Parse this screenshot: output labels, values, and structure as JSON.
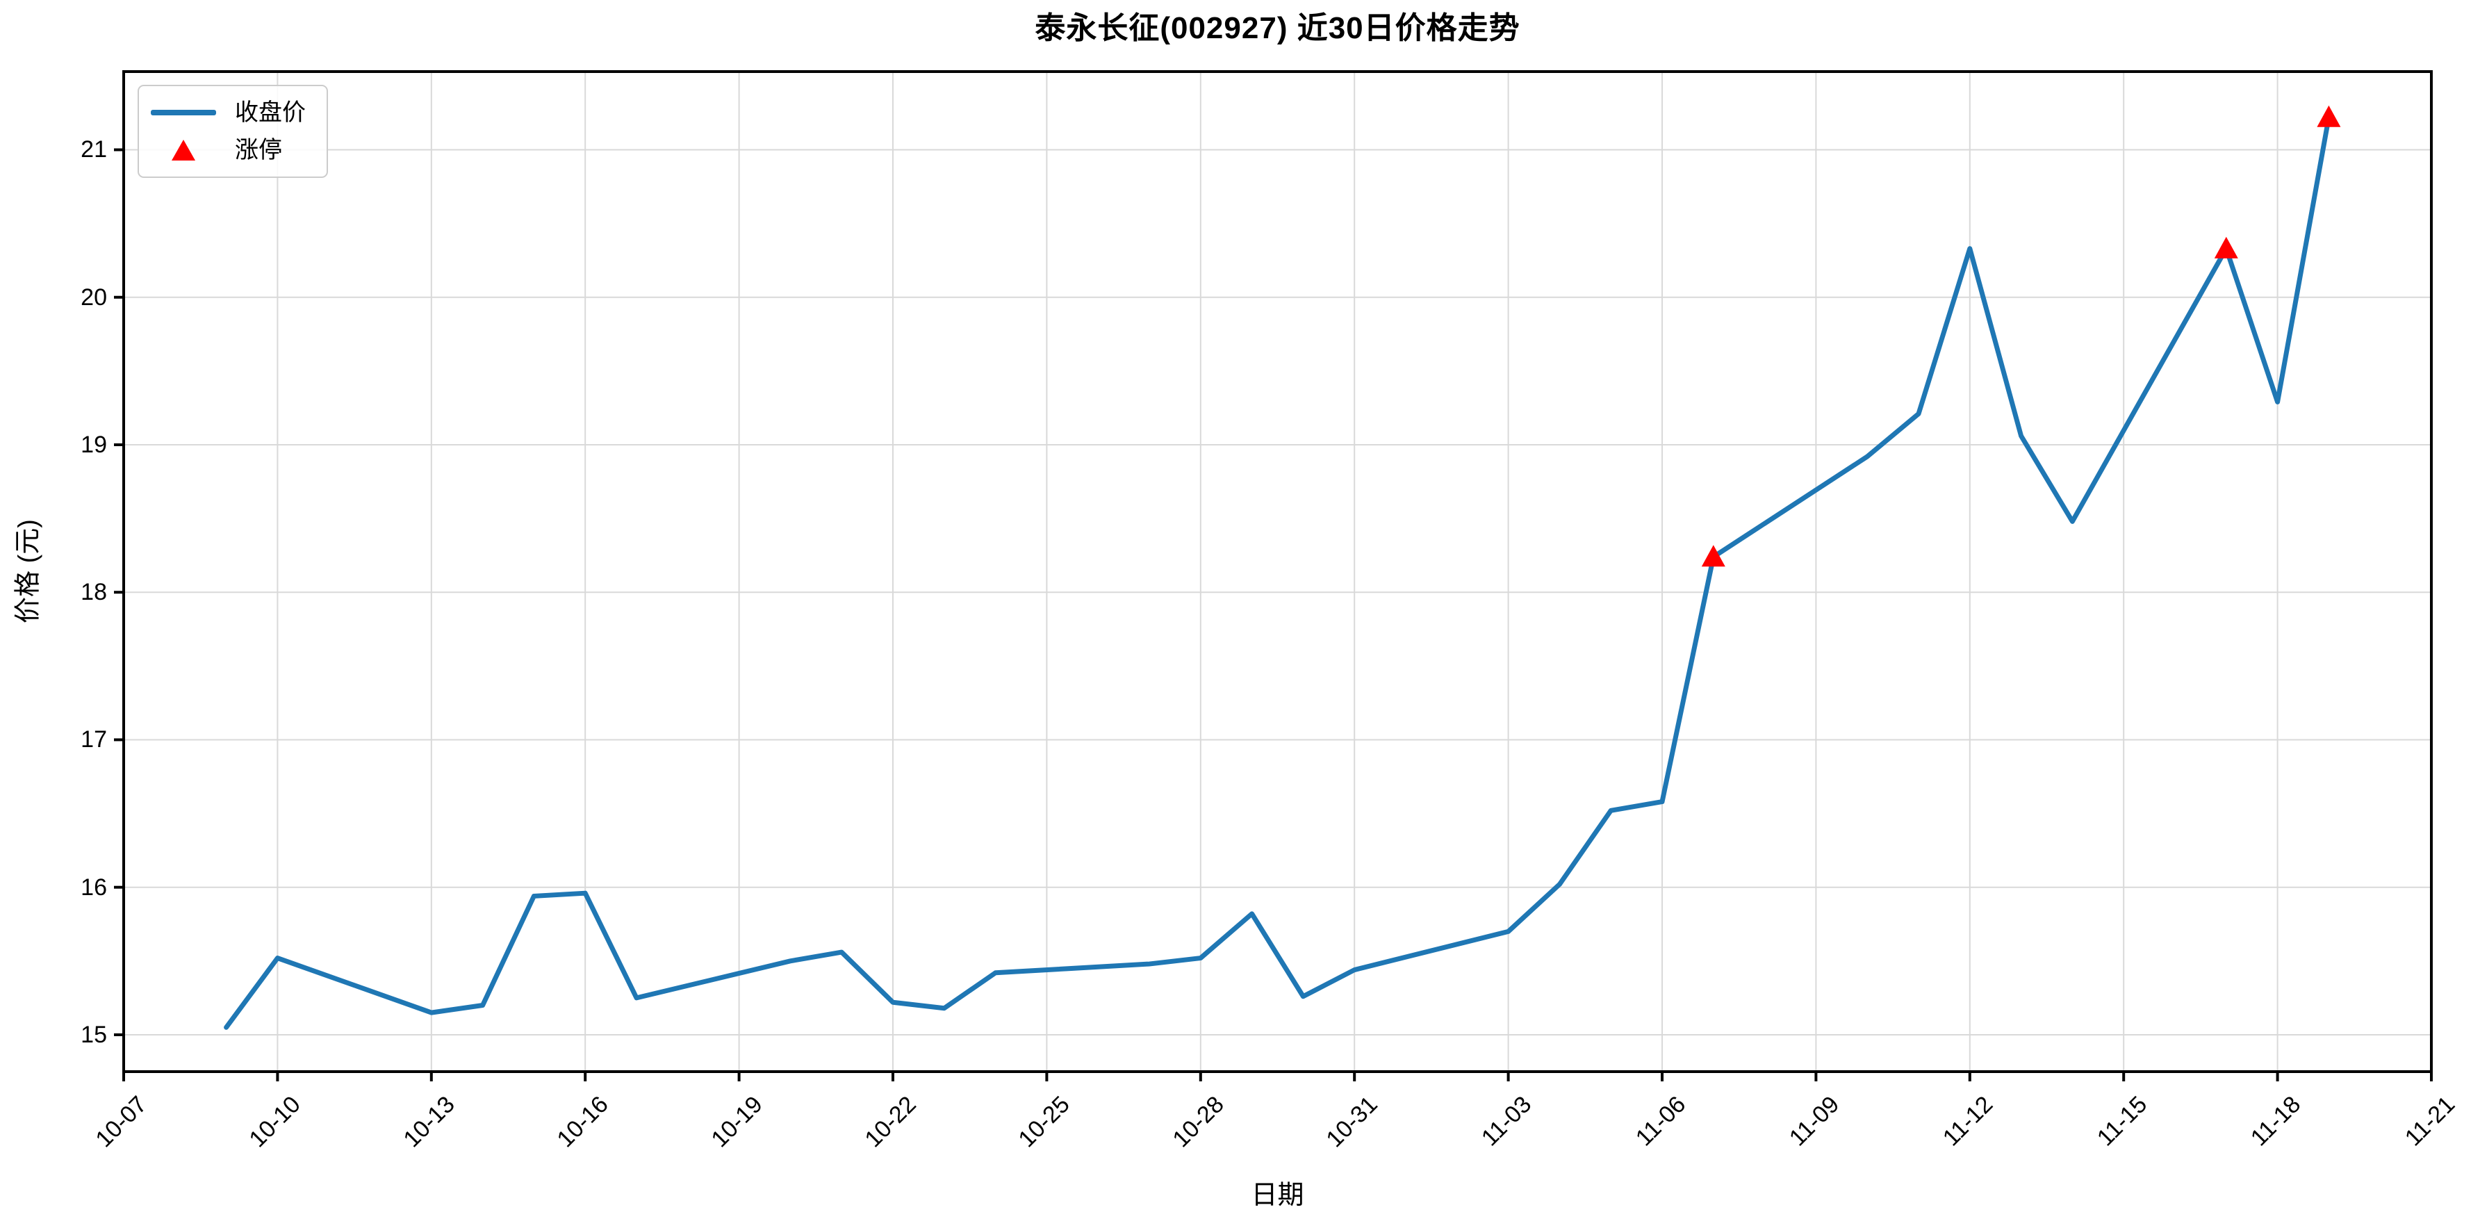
{
  "chart_data": {
    "type": "line",
    "title": "泰永长征(002927) 近30日价格走势",
    "xlabel": "日期",
    "ylabel": "价格 (元)",
    "grid": true,
    "legend": {
      "position": "upper left",
      "entries": [
        {
          "label": "收盘价",
          "marker": "line",
          "color": "#1f77b4"
        },
        {
          "label": "涨停",
          "marker": "triangle-up-icon",
          "color": "#ff0000"
        }
      ]
    },
    "x_tick_labels": [
      "10-07",
      "10-10",
      "10-13",
      "10-16",
      "10-19",
      "10-22",
      "10-25",
      "10-28",
      "10-31",
      "11-03",
      "11-06",
      "11-09",
      "11-12",
      "11-15",
      "11-18",
      "11-21"
    ],
    "x_tick_rotation": 45,
    "y_ticks": [
      15,
      16,
      17,
      18,
      19,
      20,
      21
    ],
    "xlim": [
      "10-07",
      "11-21"
    ],
    "ylim": [
      14.75,
      21.53
    ],
    "series": [
      {
        "name": "收盘价",
        "color": "#1f77b4",
        "dates": [
          "10-09",
          "10-10",
          "10-13",
          "10-14",
          "10-15",
          "10-16",
          "10-17",
          "10-20",
          "10-21",
          "10-22",
          "10-23",
          "10-24",
          "10-27",
          "10-28",
          "10-29",
          "10-30",
          "10-31",
          "11-03",
          "11-04",
          "11-05",
          "11-06",
          "11-07",
          "11-10",
          "11-11",
          "11-12",
          "11-13",
          "11-14",
          "11-17",
          "11-18",
          "11-19"
        ],
        "values": [
          15.05,
          15.52,
          15.15,
          15.2,
          15.94,
          15.96,
          15.25,
          15.5,
          15.56,
          15.22,
          15.18,
          15.42,
          15.48,
          15.52,
          15.82,
          15.26,
          15.44,
          15.7,
          16.02,
          16.52,
          16.58,
          18.24,
          18.92,
          19.21,
          20.33,
          19.06,
          18.48,
          20.33,
          19.29,
          21.22
        ]
      }
    ],
    "limit_up_markers": {
      "name": "涨停",
      "color": "#ff0000",
      "dates": [
        "11-07",
        "11-17",
        "11-19"
      ],
      "values": [
        18.24,
        20.33,
        21.22
      ]
    }
  },
  "colors": {
    "line": "#1f77b4",
    "marker": "#ff0000",
    "grid": "#d9d9d9",
    "spine": "#000000",
    "background": "#ffffff",
    "text": "#000000",
    "legend_border": "#cccccc"
  }
}
